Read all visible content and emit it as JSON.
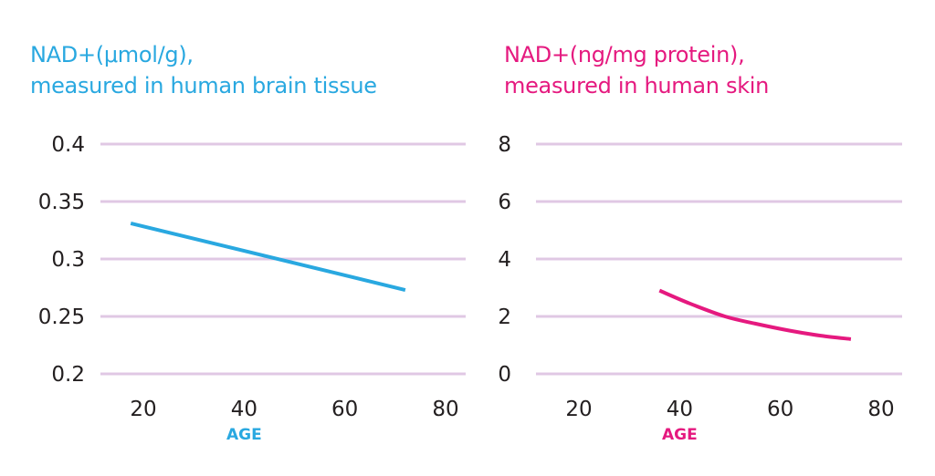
{
  "colors": {
    "brain": "#29a8e0",
    "skin": "#e5197f",
    "grid": "#e0c8e4",
    "tick": "#231f20"
  },
  "chart_data": [
    {
      "type": "line",
      "title_lines": [
        "NAD+(μmol/g),",
        "measured in human brain tissue"
      ],
      "xlabel": "AGE",
      "ylabel": "",
      "xlim": [
        10,
        84
      ],
      "ylim": [
        0.2,
        0.4
      ],
      "xticks": [
        20,
        40,
        60,
        80
      ],
      "xtick_labels": [
        "20",
        "40",
        "60",
        "80"
      ],
      "yticks": [
        0.4,
        0.35,
        0.3,
        0.25,
        0.2
      ],
      "ytick_labels": [
        "0.4",
        "0.35",
        "0.3",
        "0.25",
        "0.2"
      ],
      "grid": "horizontal",
      "series": [
        {
          "name": "Brain NAD+",
          "x": [
            17.5,
            72
          ],
          "y": [
            0.331,
            0.273
          ]
        }
      ]
    },
    {
      "type": "line",
      "title_lines": [
        "NAD+(ng/mg protein),",
        "measured in human skin"
      ],
      "xlabel": "AGE",
      "ylabel": "",
      "xlim": [
        10,
        84
      ],
      "ylim": [
        0,
        8
      ],
      "xticks": [
        20,
        40,
        60,
        80
      ],
      "xtick_labels": [
        "20",
        "40",
        "60",
        "80"
      ],
      "yticks": [
        8,
        6,
        4,
        2,
        0
      ],
      "ytick_labels": [
        "8",
        "6",
        "4",
        "2",
        "0"
      ],
      "grid": "horizontal",
      "series": [
        {
          "name": "Skin NAD+",
          "x": [
            36,
            42,
            49,
            55,
            62,
            68,
            74
          ],
          "y": [
            2.9,
            2.45,
            2.0,
            1.75,
            1.5,
            1.33,
            1.21
          ]
        }
      ]
    }
  ]
}
